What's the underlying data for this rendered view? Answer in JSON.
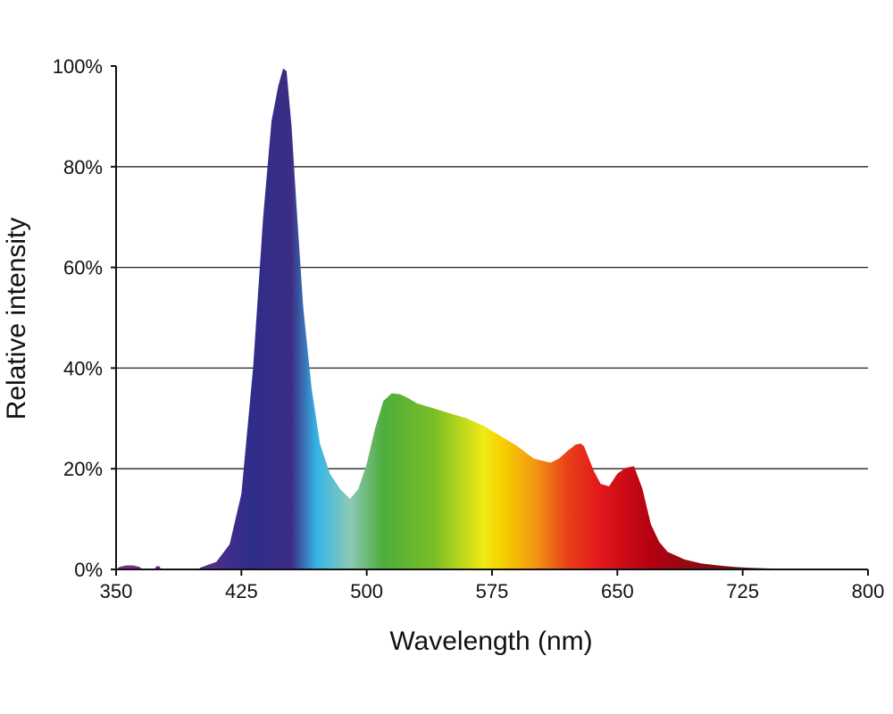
{
  "chart_data": {
    "type": "area",
    "title": "",
    "xlabel": "Wavelength (nm)",
    "ylabel": "Relative intensity",
    "xlim": [
      350,
      800
    ],
    "ylim": [
      0,
      100
    ],
    "x_ticks": [
      350,
      425,
      500,
      575,
      650,
      725,
      800
    ],
    "y_ticks": [
      0,
      20,
      40,
      60,
      80,
      100
    ],
    "y_tick_labels": [
      "0%",
      "20%",
      "40%",
      "60%",
      "80%",
      "100%"
    ],
    "grid": "horizontal",
    "legend": "none",
    "fill": "visible-spectrum-gradient",
    "series": [
      {
        "x": [
          400,
          410,
          418,
          425,
          432,
          438,
          443,
          447,
          450,
          452,
          455,
          458,
          462,
          467,
          472,
          478,
          484,
          490,
          495,
          500,
          505,
          510,
          515,
          520,
          525,
          530,
          540,
          550,
          560,
          570,
          575,
          580,
          590,
          600,
          610,
          615,
          620,
          625,
          628,
          630,
          633,
          636,
          640,
          645,
          650,
          655,
          660,
          665,
          670,
          675,
          680,
          690,
          700,
          710,
          720,
          730,
          740,
          755
        ],
        "values": [
          0.3,
          1.5,
          5,
          15,
          40,
          70,
          89,
          96,
          99.5,
          99,
          88,
          72,
          52,
          36,
          25,
          19,
          16,
          14,
          16,
          21,
          28,
          33.5,
          35,
          34.8,
          34,
          33,
          32,
          31,
          30,
          28.5,
          27.5,
          26.5,
          24.5,
          22,
          21.2,
          22,
          23.5,
          24.8,
          25,
          24.5,
          22,
          19.5,
          17,
          16.5,
          19,
          20.2,
          20.5,
          16,
          9,
          5.5,
          3.5,
          2,
          1.2,
          0.8,
          0.5,
          0.3,
          0.2,
          0.1
        ]
      },
      {
        "x": [
          350,
          352,
          356,
          360,
          364,
          366
        ],
        "values": [
          0,
          0.5,
          0.8,
          0.8,
          0.5,
          0
        ]
      },
      {
        "x": [
          373,
          374,
          375,
          376,
          377
        ],
        "values": [
          0,
          0.6,
          0.7,
          0.6,
          0
        ]
      }
    ],
    "colors": {
      "axis": "#111111",
      "grid": "#222222",
      "spectrum": {
        "380": "#7a2e8a",
        "430": "#2e2d8a",
        "455": "#3c2d84",
        "470": "#36b5e6",
        "490": "#8cc9b7",
        "510": "#4fad3b",
        "540": "#78be26",
        "570": "#f1ea14",
        "580": "#f6d200",
        "600": "#f39a12",
        "620": "#e8411a",
        "640": "#e3161b",
        "670": "#b30011",
        "710": "#7b1012",
        "760": "#5a0e10"
      }
    }
  }
}
